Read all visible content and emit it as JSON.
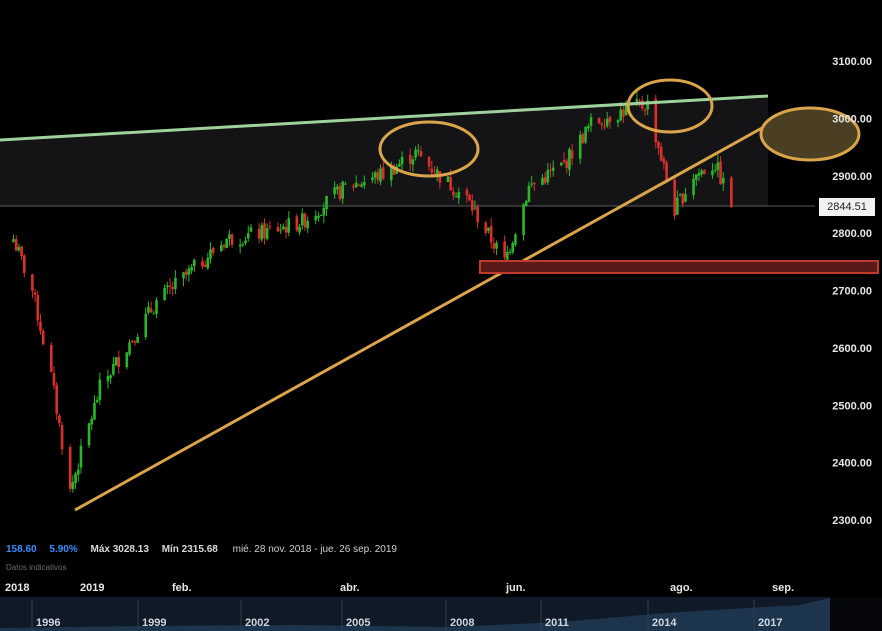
{
  "chart_data": {
    "type": "candlestick",
    "title": "",
    "y_ticks": [
      "3100.00",
      "3000.00",
      "2900.00",
      "2800.00",
      "2700.00",
      "2600.00",
      "2500.00",
      "2400.00",
      "2300.00"
    ],
    "ylim": [
      2280,
      3130
    ],
    "x_ticks": [
      "2018",
      "2019",
      "feb.",
      "abr.",
      "jun.",
      "ago.",
      "sep."
    ],
    "last_price": "2844.51",
    "navigator_labels": [
      "1996",
      "1999",
      "2002",
      "2005",
      "2008",
      "2011",
      "2014",
      "2017"
    ],
    "series": [
      {
        "name": "price",
        "approx_path": [
          [
            "2018-12-03",
            2790
          ],
          [
            "2018-12-10",
            2700
          ],
          [
            "2018-12-17",
            2550
          ],
          [
            "2018-12-24",
            2350
          ],
          [
            "2019-01-04",
            2530
          ],
          [
            "2019-01-15",
            2610
          ],
          [
            "2019-01-25",
            2680
          ],
          [
            "2019-02-06",
            2730
          ],
          [
            "2019-02-20",
            2790
          ],
          [
            "2019-03-05",
            2800
          ],
          [
            "2019-03-20",
            2820
          ],
          [
            "2019-04-05",
            2880
          ],
          [
            "2019-04-20",
            2905
          ],
          [
            "2019-05-01",
            2940
          ],
          [
            "2019-05-10",
            2900
          ],
          [
            "2019-05-20",
            2860
          ],
          [
            "2019-06-03",
            2750
          ],
          [
            "2019-06-12",
            2880
          ],
          [
            "2019-06-25",
            2920
          ],
          [
            "2019-07-05",
            2990
          ],
          [
            "2019-07-15",
            3010
          ],
          [
            "2019-07-26",
            3025
          ],
          [
            "2019-08-05",
            2840
          ],
          [
            "2019-08-12",
            2900
          ],
          [
            "2019-08-20",
            2920
          ],
          [
            "2019-08-26",
            2850
          ]
        ]
      }
    ],
    "annotations": [
      {
        "type": "trendline",
        "color": "#9fd19b"
      },
      {
        "type": "trendline",
        "color": "#d9a44a"
      },
      {
        "type": "ellipse",
        "color": "#d9a44a"
      },
      {
        "type": "support-zone",
        "color": "#c0392b"
      }
    ],
    "grid": false,
    "legend": "none"
  },
  "stats": {
    "change": "158.60",
    "change_pct": "5.90%",
    "max": "Máx 3028.13",
    "min": "Mín 2315.68",
    "range": "mié. 28 nov. 2018 - jue. 26 sep. 2019"
  },
  "datos_label": "Datos indicativos",
  "colors": {
    "up": "#2bb52b",
    "down": "#d9302c",
    "accent": "#d9a44a"
  }
}
